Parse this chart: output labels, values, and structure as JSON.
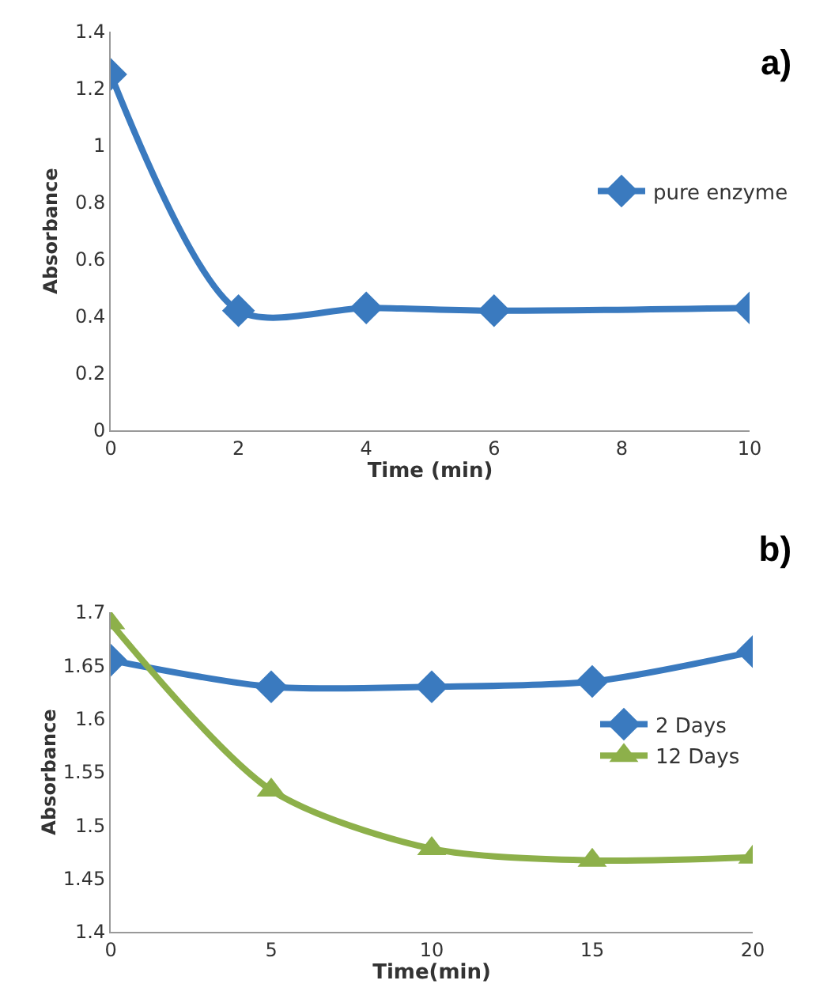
{
  "chart_data": [
    {
      "type": "line",
      "title": "a)",
      "xlabel": "Time (min)",
      "ylabel": "Absorbance",
      "x": [
        0,
        2,
        4,
        6,
        10
      ],
      "xlim": [
        0,
        10
      ],
      "xticks": [
        0,
        2,
        4,
        6,
        8,
        10
      ],
      "ylim": [
        0,
        1.4
      ],
      "yticks": [
        0,
        0.2,
        0.4,
        0.6,
        0.8,
        1,
        1.2,
        1.4
      ],
      "grid": false,
      "legend": "right",
      "series": [
        {
          "name": "pure enzyme",
          "color": "#3a7abf",
          "marker": "diamond",
          "values": [
            1.25,
            0.42,
            0.43,
            0.42,
            0.43
          ]
        }
      ]
    },
    {
      "type": "line",
      "title": "b)",
      "xlabel": "Time(min)",
      "ylabel": "Absorbance",
      "x": [
        0,
        5,
        10,
        15,
        20
      ],
      "xlim": [
        0,
        20
      ],
      "xticks": [
        0,
        5,
        10,
        15,
        20
      ],
      "ylim": [
        1.4,
        1.7
      ],
      "yticks": [
        1.4,
        1.45,
        1.5,
        1.55,
        1.6,
        1.65,
        1.7
      ],
      "grid": false,
      "legend": "right",
      "series": [
        {
          "name": "2 Days",
          "color": "#3a7abf",
          "marker": "diamond",
          "values": [
            1.655,
            1.63,
            1.63,
            1.635,
            1.663
          ]
        },
        {
          "name": "12 Days",
          "color": "#8db04a",
          "marker": "triangle",
          "values": [
            1.69,
            1.533,
            1.478,
            1.467,
            1.47
          ]
        }
      ]
    }
  ]
}
